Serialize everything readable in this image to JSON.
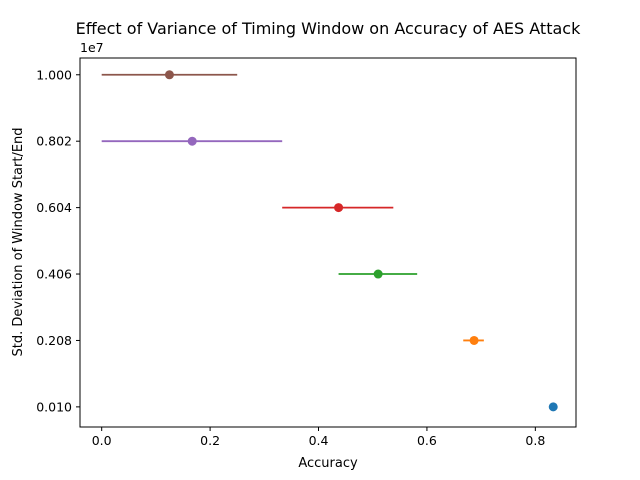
{
  "chart_data": {
    "type": "scatter",
    "title": "Effect of Variance of Timing Window on Accuracy of AES Attack",
    "xlabel": "Accuracy",
    "ylabel": "Std. Deviation of Window Start/End",
    "y_offset_label": "1e7",
    "xlim": [
      -0.04,
      0.875
    ],
    "ylim": [
      -0.05,
      1.05
    ],
    "xticks": [
      0.0,
      0.2,
      0.4,
      0.6,
      0.8
    ],
    "xtick_labels": [
      "0.0",
      "0.2",
      "0.4",
      "0.6",
      "0.8"
    ],
    "yticks": [
      0.01,
      0.208,
      0.406,
      0.604,
      0.802,
      1.0
    ],
    "ytick_labels": [
      "0.010",
      "0.208",
      "0.406",
      "0.604",
      "0.802",
      "1.000"
    ],
    "grid": false,
    "points": [
      {
        "y": 0.01,
        "x": 0.833,
        "xerr_low": 0.833,
        "xerr_high": 0.833,
        "color": "#1f77b4"
      },
      {
        "y": 0.208,
        "x": 0.687,
        "xerr_low": 0.667,
        "xerr_high": 0.705,
        "color": "#ff7f0e"
      },
      {
        "y": 0.406,
        "x": 0.51,
        "xerr_low": 0.437,
        "xerr_high": 0.582,
        "color": "#2ca02c"
      },
      {
        "y": 0.604,
        "x": 0.437,
        "xerr_low": 0.333,
        "xerr_high": 0.538,
        "color": "#d62728"
      },
      {
        "y": 0.802,
        "x": 0.167,
        "xerr_low": 0.0,
        "xerr_high": 0.333,
        "color": "#9467bd"
      },
      {
        "y": 1.0,
        "x": 0.125,
        "xerr_low": 0.0,
        "xerr_high": 0.25,
        "color": "#8c564b"
      }
    ]
  }
}
